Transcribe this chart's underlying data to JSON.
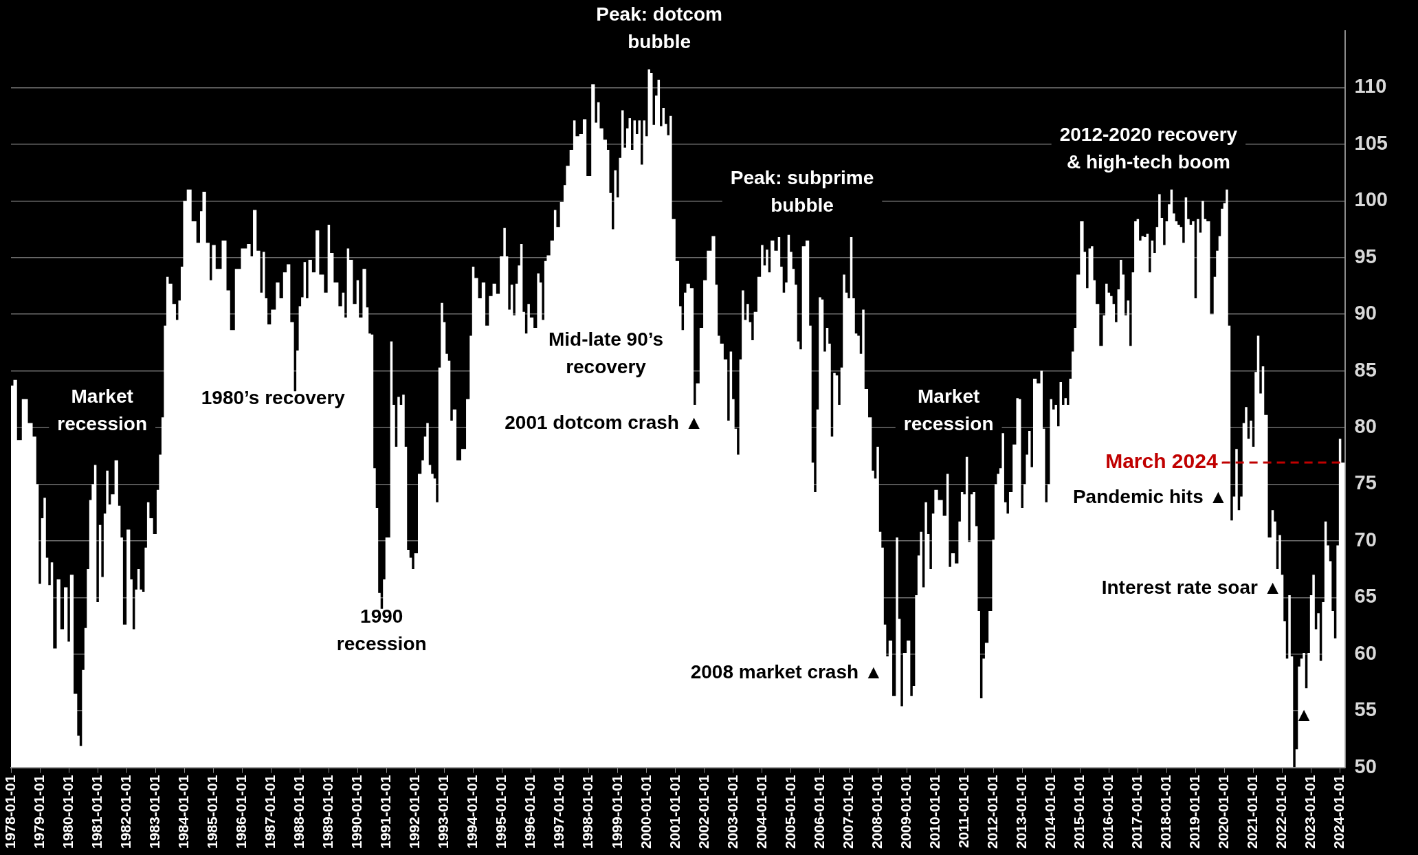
{
  "chart_data": {
    "type": "area",
    "series": [
      {
        "color": "#ffffff",
        "x": [
          "1978-01",
          "1978-03",
          "1978-04",
          "1978-07",
          "1978-09",
          "1978-11",
          "1978-12",
          "1979-01",
          "1979-02",
          "1979-03",
          "1979-04",
          "1979-05",
          "1979-06",
          "1979-07",
          "1979-09",
          "1979-10",
          "1979-12",
          "1980-01",
          "1980-02",
          "1980-04",
          "1980-05",
          "1980-06",
          "1980-07",
          "1980-08",
          "1980-09",
          "1980-10",
          "1980-11",
          "1980-12",
          "1981-01",
          "1981-02",
          "1981-03",
          "1981-04",
          "1981-05",
          "1981-06",
          "1981-07",
          "1981-09",
          "1981-10",
          "1981-11",
          "1981-12",
          "1982-02",
          "1982-03",
          "1982-04",
          "1982-05",
          "1982-06",
          "1982-07",
          "1982-08",
          "1982-09",
          "1982-10",
          "1982-11",
          "1983-01",
          "1983-02",
          "1983-03",
          "1983-04",
          "1983-05",
          "1983-06",
          "1983-07",
          "1983-09",
          "1983-10",
          "1983-11",
          "1983-12",
          "1984-01",
          "1984-03",
          "1984-05",
          "1984-07",
          "1984-08",
          "1984-09",
          "1984-11",
          "1984-12",
          "1985-01",
          "1985-03",
          "1985-06",
          "1985-07",
          "1985-09",
          "1985-11",
          "1986-02",
          "1986-04",
          "1986-05",
          "1986-06",
          "1986-08",
          "1986-09",
          "1986-10",
          "1986-11",
          "1986-12",
          "1987-02",
          "1987-04",
          "1987-05",
          "1987-07",
          "1987-08",
          "1987-10",
          "1987-11",
          "1987-12",
          "1988-01",
          "1988-02",
          "1988-03",
          "1988-04",
          "1988-05",
          "1988-07",
          "1988-08",
          "1988-10",
          "1988-12",
          "1989-01",
          "1989-02",
          "1989-04",
          "1989-06",
          "1989-07",
          "1989-08",
          "1989-09",
          "1989-10",
          "1989-12",
          "1990-01",
          "1990-02",
          "1990-04",
          "1990-05",
          "1990-06",
          "1990-07",
          "1990-08",
          "1990-09",
          "1990-10",
          "1990-11",
          "1990-12",
          "1991-01",
          "1991-02",
          "1991-03",
          "1991-04",
          "1991-05",
          "1991-06",
          "1991-07",
          "1991-08",
          "1991-09",
          "1991-10",
          "1991-11",
          "1991-12",
          "1992-01",
          "1992-03",
          "1992-04",
          "1992-05",
          "1992-06",
          "1992-07",
          "1992-08",
          "1992-09",
          "1992-10",
          "1992-11",
          "1992-12",
          "1993-01",
          "1993-02",
          "1993-03",
          "1993-04",
          "1993-05",
          "1993-07",
          "1993-09",
          "1993-11",
          "1993-12",
          "1994-01",
          "1994-02",
          "1994-04",
          "1994-05",
          "1994-07",
          "1994-08",
          "1994-10",
          "1994-11",
          "1995-01",
          "1995-02",
          "1995-03",
          "1995-04",
          "1995-05",
          "1995-06",
          "1995-07",
          "1995-08",
          "1995-09",
          "1995-10",
          "1995-11",
          "1995-12",
          "1996-01",
          "1996-03",
          "1996-04",
          "1996-05",
          "1996-06",
          "1996-07",
          "1996-08",
          "1996-10",
          "1996-11",
          "1996-12",
          "1997-02",
          "1997-03",
          "1997-04",
          "1997-06",
          "1997-07",
          "1997-08",
          "1997-10",
          "1997-11",
          "1998-01",
          "1998-03",
          "1998-04",
          "1998-05",
          "1998-06",
          "1998-08",
          "1998-09",
          "1998-10",
          "1998-11",
          "1998-12",
          "1999-01",
          "1999-02",
          "1999-03",
          "1999-04",
          "1999-05",
          "1999-06",
          "1999-07",
          "1999-08",
          "1999-09",
          "1999-10",
          "1999-11",
          "1999-12",
          "2000-01",
          "2000-02",
          "2000-03",
          "2000-04",
          "2000-05",
          "2000-06",
          "2000-07",
          "2000-08",
          "2000-09",
          "2000-10",
          "2000-11",
          "2000-12",
          "2001-02",
          "2001-03",
          "2001-04",
          "2001-05",
          "2001-06",
          "2001-08",
          "2001-09",
          "2001-10",
          "2001-12",
          "2002-01",
          "2002-03",
          "2002-05",
          "2002-06",
          "2002-07",
          "2002-08",
          "2002-10",
          "2002-11",
          "2002-12",
          "2003-01",
          "2003-02",
          "2003-03",
          "2003-04",
          "2003-05",
          "2003-06",
          "2003-07",
          "2003-08",
          "2003-09",
          "2003-10",
          "2003-12",
          "2004-01",
          "2004-02",
          "2004-03",
          "2004-04",
          "2004-05",
          "2004-07",
          "2004-08",
          "2004-09",
          "2004-10",
          "2004-11",
          "2004-12",
          "2005-01",
          "2005-02",
          "2005-03",
          "2005-04",
          "2005-05",
          "2005-06",
          "2005-08",
          "2005-09",
          "2005-10",
          "2005-11",
          "2005-12",
          "2006-01",
          "2006-02",
          "2006-03",
          "2006-04",
          "2006-05",
          "2006-06",
          "2006-07",
          "2006-08",
          "2006-09",
          "2006-10",
          "2006-11",
          "2006-12",
          "2007-01",
          "2007-02",
          "2007-03",
          "2007-04",
          "2007-05",
          "2007-06",
          "2007-07",
          "2007-08",
          "2007-10",
          "2007-11",
          "2007-12",
          "2008-01",
          "2008-02",
          "2008-03",
          "2008-04",
          "2008-05",
          "2008-06",
          "2008-08",
          "2008-09",
          "2008-10",
          "2008-11",
          "2008-12",
          "2009-02",
          "2009-03",
          "2009-04",
          "2009-05",
          "2009-06",
          "2009-07",
          "2009-08",
          "2009-09",
          "2009-10",
          "2009-11",
          "2009-12",
          "2010-01",
          "2010-03",
          "2010-05",
          "2010-06",
          "2010-07",
          "2010-08",
          "2010-10",
          "2010-11",
          "2010-12",
          "2011-01",
          "2011-02",
          "2011-03",
          "2011-04",
          "2011-05",
          "2011-06",
          "2011-07",
          "2011-08",
          "2011-09",
          "2011-10",
          "2011-12",
          "2012-01",
          "2012-02",
          "2012-03",
          "2012-04",
          "2012-05",
          "2012-06",
          "2012-07",
          "2012-08",
          "2012-10",
          "2012-11",
          "2012-12",
          "2013-01",
          "2013-02",
          "2013-03",
          "2013-04",
          "2013-05",
          "2013-06",
          "2013-08",
          "2013-09",
          "2013-10",
          "2013-11",
          "2013-12",
          "2014-01",
          "2014-02",
          "2014-03",
          "2014-04",
          "2014-05",
          "2014-06",
          "2014-07",
          "2014-08",
          "2014-09",
          "2014-10",
          "2014-11",
          "2014-12",
          "2015-02",
          "2015-03",
          "2015-04",
          "2015-05",
          "2015-06",
          "2015-07",
          "2015-08",
          "2015-10",
          "2015-11",
          "2015-12",
          "2016-01",
          "2016-02",
          "2016-03",
          "2016-04",
          "2016-05",
          "2016-06",
          "2016-07",
          "2016-08",
          "2016-09",
          "2016-10",
          "2016-11",
          "2016-12",
          "2017-01",
          "2017-02",
          "2017-03",
          "2017-04",
          "2017-05",
          "2017-06",
          "2017-07",
          "2017-08",
          "2017-09",
          "2017-10",
          "2017-11",
          "2017-12",
          "2018-01",
          "2018-02",
          "2018-03",
          "2018-04",
          "2018-05",
          "2018-06",
          "2018-07",
          "2018-08",
          "2018-09",
          "2018-10",
          "2018-11",
          "2018-12",
          "2019-01",
          "2019-02",
          "2019-03",
          "2019-04",
          "2019-05",
          "2019-06",
          "2019-08",
          "2019-09",
          "2019-10",
          "2019-11",
          "2019-12",
          "2020-01",
          "2020-02",
          "2020-03",
          "2020-04",
          "2020-05",
          "2020-06",
          "2020-07",
          "2020-08",
          "2020-09",
          "2020-10",
          "2020-11",
          "2020-12",
          "2021-01",
          "2021-02",
          "2021-03",
          "2021-04",
          "2021-05",
          "2021-06",
          "2021-08",
          "2021-09",
          "2021-10",
          "2021-11",
          "2021-12",
          "2022-01",
          "2022-02",
          "2022-03",
          "2022-04",
          "2022-05",
          "2022-06",
          "2022-07",
          "2022-08",
          "2022-09",
          "2022-10",
          "2022-11",
          "2022-12",
          "2023-01",
          "2023-02",
          "2023-03",
          "2023-04",
          "2023-05",
          "2023-06",
          "2023-07",
          "2023-08",
          "2023-09",
          "2023-10",
          "2023-11",
          "2023-12",
          "2024-01",
          "2024-02",
          "2024-03"
        ],
        "values": [
          83.7,
          84.2,
          78.9,
          82.5,
          80.4,
          79.2,
          75.0,
          66.2,
          72.0,
          73.8,
          68.5,
          66.1,
          68.1,
          60.5,
          66.6,
          62.2,
          65.9,
          61.1,
          67.0,
          56.5,
          52.8,
          51.9,
          58.6,
          62.3,
          67.5,
          73.6,
          75.0,
          76.7,
          64.6,
          71.4,
          66.8,
          72.4,
          76.2,
          73.2,
          74.1,
          77.1,
          73.1,
          70.3,
          62.6,
          71.0,
          66.6,
          62.2,
          65.7,
          67.5,
          65.7,
          65.5,
          69.4,
          73.4,
          72.0,
          70.6,
          74.5,
          77.6,
          80.9,
          89.0,
          93.3,
          92.7,
          90.9,
          89.5,
          91.2,
          94.2,
          100.0,
          101.0,
          98.2,
          96.3,
          99.1,
          100.8,
          96.3,
          93.0,
          96.1,
          94.0,
          96.5,
          92.1,
          88.6,
          94.0,
          95.8,
          96.2,
          95.1,
          99.2,
          95.6,
          91.9,
          95.5,
          91.4,
          89.1,
          90.4,
          92.8,
          91.4,
          93.7,
          94.4,
          89.3,
          83.2,
          86.8,
          90.7,
          91.5,
          94.6,
          91.4,
          94.8,
          93.7,
          97.4,
          93.5,
          91.9,
          97.9,
          95.4,
          92.8,
          90.7,
          91.9,
          89.7,
          95.8,
          94.8,
          90.9,
          93.0,
          89.7,
          94.0,
          90.6,
          88.3,
          88.2,
          76.4,
          72.9,
          65.4,
          64.0,
          66.6,
          70.3,
          70.3,
          87.6,
          82.0,
          78.3,
          82.7,
          82.0,
          82.9,
          78.3,
          69.2,
          68.5,
          67.5,
          68.9,
          75.9,
          77.1,
          79.2,
          80.4,
          76.7,
          75.9,
          75.5,
          73.4,
          85.3,
          91.0,
          89.3,
          86.5,
          85.9,
          80.6,
          81.6,
          77.1,
          78.1,
          82.5,
          88.1,
          94.2,
          93.2,
          91.4,
          92.8,
          89.0,
          91.6,
          92.7,
          91.8,
          95.1,
          97.6,
          95.1,
          90.4,
          92.6,
          89.9,
          92.7,
          94.3,
          96.2,
          90.2,
          88.3,
          90.9,
          89.7,
          88.8,
          93.6,
          92.8,
          89.5,
          94.7,
          95.2,
          96.5,
          99.2,
          97.7,
          99.9,
          101.4,
          103.1,
          104.5,
          107.1,
          105.7,
          105.9,
          107.2,
          102.2,
          110.3,
          106.9,
          108.7,
          106.4,
          105.4,
          104.5,
          100.7,
          97.5,
          102.7,
          100.3,
          103.8,
          108.0,
          104.7,
          106.4,
          107.3,
          104.5,
          107.1,
          105.9,
          107.1,
          103.2,
          107.1,
          105.7,
          111.6,
          111.3,
          106.7,
          109.3,
          110.7,
          106.6,
          108.2,
          106.8,
          105.8,
          107.5,
          98.4,
          94.7,
          90.7,
          88.6,
          91.9,
          92.7,
          92.3,
          82.0,
          83.9,
          88.8,
          93.0,
          95.6,
          96.9,
          92.6,
          88.1,
          87.4,
          86.0,
          80.6,
          86.7,
          82.5,
          79.9,
          77.6,
          86.0,
          92.1,
          89.5,
          90.9,
          89.3,
          87.7,
          90.2,
          93.3,
          96.1,
          94.3,
          95.7,
          93.7,
          96.5,
          95.6,
          96.8,
          94.2,
          91.9,
          92.8,
          97.0,
          95.5,
          94.0,
          92.6,
          87.6,
          86.9,
          96.0,
          96.5,
          89.0,
          76.9,
          74.3,
          81.6,
          91.5,
          91.3,
          86.7,
          88.8,
          87.4,
          79.2,
          84.8,
          84.6,
          82.0,
          85.3,
          93.5,
          91.9,
          91.4,
          96.8,
          91.4,
          88.3,
          88.1,
          86.5,
          90.4,
          83.4,
          80.9,
          76.2,
          75.5,
          78.3,
          70.8,
          69.4,
          62.6,
          59.8,
          61.2,
          56.3,
          70.3,
          63.1,
          55.4,
          60.1,
          61.2,
          56.3,
          57.2,
          65.2,
          68.7,
          70.8,
          65.9,
          73.4,
          70.6,
          67.5,
          72.4,
          74.5,
          73.6,
          72.2,
          75.9,
          67.7,
          68.9,
          68.0,
          71.7,
          74.3,
          74.1,
          77.4,
          69.9,
          74.1,
          74.3,
          71.3,
          63.8,
          56.1,
          59.6,
          61.0,
          63.8,
          70.1,
          75.0,
          75.9,
          76.4,
          79.5,
          73.4,
          72.4,
          74.3,
          78.5,
          82.6,
          82.5,
          72.9,
          75.0,
          77.6,
          79.7,
          76.5,
          84.3,
          83.9,
          85.0,
          79.9,
          73.4,
          75.0,
          82.5,
          81.6,
          82.0,
          80.1,
          84.0,
          82.0,
          82.6,
          82.0,
          84.3,
          86.7,
          88.8,
          93.5,
          98.2,
          95.5,
          92.3,
          95.8,
          96.0,
          93.0,
          90.9,
          87.2,
          89.9,
          92.7,
          91.9,
          91.6,
          90.9,
          89.3,
          92.2,
          94.8,
          93.5,
          89.9,
          91.2,
          87.2,
          93.7,
          98.2,
          98.4,
          96.5,
          96.9,
          96.8,
          97.1,
          93.7,
          96.5,
          95.4,
          97.7,
          100.6,
          98.5,
          96.1,
          98.2,
          99.7,
          101.0,
          98.9,
          98.2,
          97.9,
          97.7,
          96.3,
          100.3,
          98.4,
          97.9,
          98.2,
          91.4,
          98.4,
          97.2,
          100.0,
          98.4,
          98.2,
          90.0,
          93.3,
          95.6,
          96.9,
          99.3,
          99.8,
          101.0,
          89.0,
          71.8,
          73.9,
          78.1,
          72.7,
          73.9,
          80.4,
          81.8,
          79.0,
          80.6,
          78.3,
          84.9,
          88.1,
          83.0,
          85.4,
          81.1,
          70.3,
          72.7,
          71.7,
          67.5,
          70.5,
          67.0,
          62.9,
          59.6,
          65.2,
          59.8,
          50.0,
          51.6,
          58.9,
          59.6,
          60.1,
          57.0,
          60.1,
          65.2,
          67.0,
          62.2,
          63.6,
          59.4,
          64.6,
          71.7,
          69.6,
          68.2,
          63.8,
          61.4,
          69.6,
          79.0,
          76.9,
          76.9
        ]
      }
    ],
    "xlim": [
      "1978-01",
      "2024-03"
    ],
    "xticks": [
      "1978-01-01",
      "1979-01-01",
      "1980-01-01",
      "1981-01-01",
      "1982-01-01",
      "1983-01-01",
      "1984-01-01",
      "1985-01-01",
      "1986-01-01",
      "1987-01-01",
      "1988-01-01",
      "1989-01-01",
      "1990-01-01",
      "1991-01-01",
      "1992-01-01",
      "1993-01-01",
      "1994-01-01",
      "1995-01-01",
      "1996-01-01",
      "1997-01-01",
      "1998-01-01",
      "1999-01-01",
      "2000-01-01",
      "2001-01-01",
      "2002-01-01",
      "2003-01-01",
      "2004-01-01",
      "2005-01-01",
      "2006-01-01",
      "2007-01-01",
      "2008-01-01",
      "2009-01-01",
      "2010-01-01",
      "2011-01-01",
      "2012-01-01",
      "2013-01-01",
      "2014-01-01",
      "2015-01-01",
      "2016-01-01",
      "2017-01-01",
      "2018-01-01",
      "2019-01-01",
      "2020-01-01",
      "2021-01-01",
      "2022-01-01",
      "2023-01-01",
      "2024-01-01"
    ],
    "ylim": [
      50,
      115
    ],
    "yticks": [
      50,
      55,
      60,
      65,
      70,
      75,
      80,
      85,
      90,
      95,
      100,
      105,
      110
    ],
    "grid": "y",
    "annotations": [
      "Market\nrecession",
      "1980’s recovery",
      "1990\nrecession",
      "Peak: dotcom\nbubble",
      "Mid-late 90’s\nrecovery",
      "2001 dotcom crash ▲",
      "Peak: subprime\nbubble",
      "2008 market crash ▲",
      "Market\nrecession",
      "2012-2020 recovery\n& high-tech boom",
      "Pandemic hits ▲",
      "Interest rate soar ▲",
      "▲"
    ],
    "ref_lines": [
      {
        "axis": "y",
        "value": 76.9,
        "label": "March 2024",
        "color": "#c00000",
        "line_style": "dashed"
      }
    ]
  }
}
